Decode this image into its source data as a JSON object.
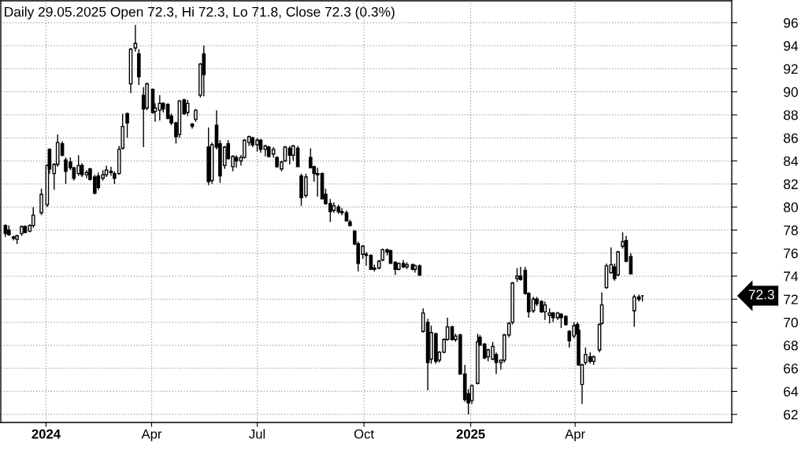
{
  "chart_data": {
    "type": "candlestick",
    "title": "Daily 29.05.2025 Open 72.3, Hi 72.3, Lo 71.8, Close 72.3 (0.3%)",
    "color": "#000000",
    "x": [
      "2023-11-27",
      "2023-11-30",
      "2023-12-04",
      "2023-12-07",
      "2023-12-11",
      "2023-12-14",
      "2023-12-18",
      "2023-12-21",
      "2023-12-28",
      "2024-01-02",
      "2024-01-04",
      "2024-01-08",
      "2024-01-11",
      "2024-01-15",
      "2024-01-18",
      "2024-01-22",
      "2024-01-25",
      "2024-01-29",
      "2024-02-01",
      "2024-02-05",
      "2024-02-08",
      "2024-02-12",
      "2024-02-15",
      "2024-02-19",
      "2024-02-22",
      "2024-02-26",
      "2024-02-29",
      "2024-03-04",
      "2024-03-07",
      "2024-03-11",
      "2024-03-14",
      "2024-03-18",
      "2024-03-21",
      "2024-03-25",
      "2024-03-28",
      "2024-04-02",
      "2024-04-04",
      "2024-04-08",
      "2024-04-11",
      "2024-04-15",
      "2024-04-18",
      "2024-04-22",
      "2024-04-25",
      "2024-04-29",
      "2024-05-02",
      "2024-05-06",
      "2024-05-09",
      "2024-05-13",
      "2024-05-16",
      "2024-05-20",
      "2024-05-23",
      "2024-05-27",
      "2024-05-30",
      "2024-06-03",
      "2024-06-06",
      "2024-06-10",
      "2024-06-13",
      "2024-06-17",
      "2024-06-20",
      "2024-06-24",
      "2024-06-27",
      "2024-07-01",
      "2024-07-04",
      "2024-07-08",
      "2024-07-11",
      "2024-07-15",
      "2024-07-18",
      "2024-07-22",
      "2024-07-25",
      "2024-07-29",
      "2024-08-01",
      "2024-08-05",
      "2024-08-08",
      "2024-08-12",
      "2024-08-16",
      "2024-08-19",
      "2024-08-22",
      "2024-08-26",
      "2024-08-29",
      "2024-09-02",
      "2024-09-05",
      "2024-09-09",
      "2024-09-12",
      "2024-09-16",
      "2024-09-19",
      "2024-09-23",
      "2024-09-26",
      "2024-09-30",
      "2024-10-03",
      "2024-10-07",
      "2024-10-10",
      "2024-10-14",
      "2024-10-17",
      "2024-10-21",
      "2024-10-24",
      "2024-10-28",
      "2024-10-31",
      "2024-11-04",
      "2024-11-07",
      "2024-11-12",
      "2024-11-14",
      "2024-11-18",
      "2024-11-21",
      "2024-11-25",
      "2024-11-28",
      "2024-12-02",
      "2024-12-05",
      "2024-12-09",
      "2024-12-12",
      "2024-12-16",
      "2024-12-19",
      "2024-12-23",
      "2024-12-27",
      "2024-12-30",
      "2025-01-02",
      "2025-01-07",
      "2025-01-09",
      "2025-01-13",
      "2025-01-16",
      "2025-01-20",
      "2025-01-23",
      "2025-01-27",
      "2025-01-30",
      "2025-02-03",
      "2025-02-06",
      "2025-02-10",
      "2025-02-13",
      "2025-02-17",
      "2025-02-20",
      "2025-02-24",
      "2025-02-27",
      "2025-03-03",
      "2025-03-06",
      "2025-03-10",
      "2025-03-13",
      "2025-03-17",
      "2025-03-20",
      "2025-03-24",
      "2025-03-27",
      "2025-03-31",
      "2025-04-03",
      "2025-04-04",
      "2025-04-07",
      "2025-04-10",
      "2025-04-14",
      "2025-04-17",
      "2025-04-22",
      "2025-04-24",
      "2025-04-28",
      "2025-05-02",
      "2025-05-05",
      "2025-05-08",
      "2025-05-12",
      "2025-05-15",
      "2025-05-19",
      "2025-05-22",
      "2025-05-26",
      "2025-05-29"
    ],
    "ohlc": [
      [
        78.4,
        78.5,
        77.4,
        77.7
      ],
      [
        78.0,
        78.4,
        77.5,
        77.6
      ],
      [
        77.3,
        77.5,
        77.1,
        77.4
      ],
      [
        77.2,
        77.6,
        76.8,
        77.5
      ],
      [
        77.7,
        78.4,
        77.5,
        78.3
      ],
      [
        78.3,
        78.4,
        77.7,
        77.8
      ],
      [
        77.9,
        78.5,
        77.8,
        78.4
      ],
      [
        78.4,
        80.0,
        78.2,
        79.3
      ],
      [
        79.5,
        81.6,
        79.3,
        81.1
      ],
      [
        80.2,
        83.7,
        80.0,
        83.6
      ],
      [
        85.0,
        85.1,
        82.9,
        83.3
      ],
      [
        82.9,
        83.8,
        81.5,
        83.7
      ],
      [
        83.7,
        86.3,
        83.5,
        85.6
      ],
      [
        85.5,
        85.7,
        84.4,
        84.5
      ],
      [
        84.1,
        84.3,
        82.0,
        83.1
      ],
      [
        83.9,
        84.3,
        83.2,
        83.4
      ],
      [
        83.4,
        83.5,
        82.3,
        82.5
      ],
      [
        82.9,
        84.5,
        82.7,
        83.6
      ],
      [
        83.6,
        83.8,
        82.6,
        82.8
      ],
      [
        82.8,
        83.2,
        82.5,
        83.0
      ],
      [
        83.3,
        83.4,
        82.3,
        82.4
      ],
      [
        82.6,
        82.8,
        81.1,
        81.2
      ],
      [
        82.7,
        83.0,
        81.5,
        81.7
      ],
      [
        82.5,
        83.2,
        82.3,
        82.8
      ],
      [
        82.8,
        83.6,
        82.6,
        83.2
      ],
      [
        83.0,
        83.5,
        82.7,
        83.1
      ],
      [
        82.9,
        83.1,
        82.0,
        82.5
      ],
      [
        82.9,
        85.3,
        82.8,
        85.0
      ],
      [
        85.1,
        88.1,
        85.0,
        87.0
      ],
      [
        88.1,
        88.2,
        86.0,
        87.3
      ],
      [
        90.7,
        93.8,
        89.9,
        93.7
      ],
      [
        93.8,
        95.8,
        93.5,
        94.2
      ],
      [
        93.3,
        93.7,
        90.6,
        91.3
      ],
      [
        89.7,
        90.4,
        85.2,
        88.5
      ],
      [
        88.6,
        90.8,
        88.4,
        90.7
      ],
      [
        90.2,
        90.3,
        88.1,
        88.2
      ],
      [
        88.3,
        89.0,
        87.4,
        88.6
      ],
      [
        88.4,
        89.7,
        87.5,
        89.0
      ],
      [
        89.0,
        89.1,
        88.2,
        88.5
      ],
      [
        88.9,
        89.0,
        87.6,
        87.7
      ],
      [
        87.9,
        88.1,
        87.1,
        87.3
      ],
      [
        87.3,
        87.4,
        85.5,
        86.1
      ],
      [
        86.3,
        89.3,
        86.0,
        89.2
      ],
      [
        89.3,
        89.4,
        88.0,
        88.1
      ],
      [
        88.2,
        89.3,
        87.9,
        89.0
      ],
      [
        87.2,
        87.3,
        86.8,
        87.0
      ],
      [
        87.6,
        88.5,
        87.4,
        88.4
      ],
      [
        89.7,
        92.5,
        89.5,
        92.4
      ],
      [
        93.3,
        94.0,
        89.6,
        91.5
      ],
      [
        85.2,
        86.9,
        81.9,
        82.2
      ],
      [
        82.3,
        85.6,
        82.0,
        85.4
      ],
      [
        87.1,
        88.4,
        85.0,
        85.2
      ],
      [
        85.5,
        85.8,
        82.1,
        82.7
      ],
      [
        83.6,
        85.3,
        83.3,
        85.2
      ],
      [
        85.5,
        85.8,
        84.1,
        84.2
      ],
      [
        83.5,
        84.5,
        83.1,
        84.4
      ],
      [
        84.3,
        84.5,
        83.4,
        84.0
      ],
      [
        84.0,
        84.5,
        83.6,
        84.3
      ],
      [
        84.3,
        85.9,
        84.2,
        85.8
      ],
      [
        85.6,
        86.2,
        85.3,
        86.1
      ],
      [
        86.0,
        86.1,
        85.2,
        85.4
      ],
      [
        85.4,
        86.0,
        84.8,
        85.8
      ],
      [
        85.8,
        85.9,
        84.7,
        85.0
      ],
      [
        85.0,
        85.4,
        84.4,
        85.3
      ],
      [
        85.2,
        85.3,
        84.3,
        84.4
      ],
      [
        84.6,
        85.2,
        84.3,
        85.0
      ],
      [
        84.3,
        84.4,
        83.4,
        83.5
      ],
      [
        83.3,
        84.0,
        83.1,
        83.9
      ],
      [
        84.0,
        85.3,
        83.9,
        85.2
      ],
      [
        85.1,
        85.3,
        83.7,
        84.5
      ],
      [
        84.5,
        85.4,
        84.0,
        85.3
      ],
      [
        85.1,
        85.3,
        83.5,
        83.5
      ],
      [
        82.7,
        82.9,
        80.1,
        80.8
      ],
      [
        81.0,
        82.9,
        80.8,
        82.6
      ],
      [
        84.3,
        85.1,
        83.4,
        83.4
      ],
      [
        83.5,
        83.6,
        82.2,
        82.9
      ],
      [
        82.9,
        83.4,
        80.9,
        82.8
      ],
      [
        82.9,
        83.0,
        80.7,
        80.7
      ],
      [
        81.1,
        81.6,
        80.2,
        80.3
      ],
      [
        80.3,
        80.7,
        78.7,
        79.6
      ],
      [
        79.7,
        80.4,
        79.5,
        80.1
      ],
      [
        80.0,
        80.2,
        79.4,
        79.6
      ],
      [
        79.6,
        79.9,
        79.3,
        79.5
      ],
      [
        79.5,
        79.7,
        78.8,
        78.8
      ],
      [
        78.7,
        78.9,
        78.3,
        78.4
      ],
      [
        77.9,
        78.0,
        76.7,
        76.8
      ],
      [
        76.8,
        77.0,
        74.4,
        75.1
      ],
      [
        75.9,
        76.7,
        75.5,
        76.6
      ],
      [
        75.9,
        76.1,
        74.9,
        75.8
      ],
      [
        75.8,
        75.9,
        74.6,
        74.6
      ],
      [
        74.7,
        75.0,
        74.4,
        74.6
      ],
      [
        74.7,
        75.4,
        74.6,
        75.3
      ],
      [
        75.4,
        76.4,
        75.3,
        76.3
      ],
      [
        76.3,
        76.4,
        75.8,
        76.1
      ],
      [
        76.2,
        76.3,
        75.1,
        75.1
      ],
      [
        75.2,
        75.3,
        74.1,
        74.6
      ],
      [
        74.6,
        75.2,
        74.5,
        75.1
      ],
      [
        75.1,
        75.4,
        74.7,
        74.8
      ],
      [
        74.8,
        75.2,
        74.6,
        75.0
      ],
      [
        75.0,
        75.1,
        74.5,
        74.6
      ],
      [
        74.6,
        75.0,
        74.3,
        74.9
      ],
      [
        74.9,
        75.0,
        74.0,
        74.1
      ],
      [
        69.2,
        71.2,
        69.1,
        70.8
      ],
      [
        70.0,
        70.3,
        64.1,
        66.5
      ],
      [
        66.8,
        69.7,
        66.4,
        69.1
      ],
      [
        69.0,
        69.1,
        66.4,
        66.6
      ],
      [
        66.7,
        67.5,
        66.5,
        67.4
      ],
      [
        67.4,
        68.6,
        67.3,
        68.5
      ],
      [
        68.5,
        70.4,
        68.4,
        69.6
      ],
      [
        69.6,
        69.7,
        68.4,
        68.5
      ],
      [
        68.5,
        69.0,
        68.3,
        68.8
      ],
      [
        68.9,
        69.0,
        65.5,
        65.5
      ],
      [
        65.5,
        66.3,
        63.1,
        63.3
      ],
      [
        63.8,
        64.2,
        62.0,
        63.0
      ],
      [
        63.2,
        64.6,
        62.9,
        64.5
      ],
      [
        64.7,
        69.0,
        64.6,
        68.3
      ],
      [
        68.7,
        68.9,
        68.0,
        68.0
      ],
      [
        68.1,
        68.2,
        66.8,
        66.9
      ],
      [
        67.0,
        67.7,
        66.6,
        67.6
      ],
      [
        66.8,
        68.3,
        66.7,
        67.9
      ],
      [
        67.2,
        67.4,
        65.5,
        66.5
      ],
      [
        66.5,
        66.8,
        65.9,
        66.7
      ],
      [
        66.7,
        69.0,
        66.5,
        68.9
      ],
      [
        68.9,
        70.0,
        68.7,
        69.9
      ],
      [
        70.0,
        73.5,
        69.8,
        73.4
      ],
      [
        73.8,
        74.7,
        73.5,
        74.0
      ],
      [
        74.0,
        74.8,
        73.6,
        73.7
      ],
      [
        74.5,
        74.8,
        72.4,
        72.5
      ],
      [
        72.5,
        72.6,
        70.4,
        70.9
      ],
      [
        71.0,
        72.2,
        70.8,
        72.0
      ],
      [
        72.0,
        72.2,
        71.4,
        71.6
      ],
      [
        71.8,
        71.9,
        70.8,
        70.9
      ],
      [
        70.9,
        71.8,
        70.2,
        71.5
      ],
      [
        70.6,
        71.2,
        69.9,
        70.8
      ],
      [
        70.8,
        70.9,
        70.0,
        70.4
      ],
      [
        70.4,
        70.9,
        70.2,
        70.8
      ],
      [
        70.7,
        70.8,
        69.5,
        70.4
      ],
      [
        70.5,
        70.6,
        69.7,
        69.8
      ],
      [
        69.2,
        69.3,
        67.8,
        68.4
      ],
      [
        68.8,
        70.0,
        68.6,
        69.7
      ],
      [
        69.8,
        70.0,
        69.0,
        69.0
      ],
      [
        69.3,
        69.4,
        66.2,
        66.3
      ],
      [
        64.6,
        66.4,
        62.9,
        66.3
      ],
      [
        66.5,
        67.8,
        66.3,
        67.2
      ],
      [
        67.0,
        67.4,
        66.4,
        66.6
      ],
      [
        66.6,
        67.1,
        66.3,
        67.0
      ],
      [
        67.6,
        69.9,
        67.4,
        69.8
      ],
      [
        69.9,
        72.6,
        69.8,
        71.5
      ],
      [
        73.0,
        75.1,
        72.9,
        74.9
      ],
      [
        74.3,
        76.5,
        74.2,
        75.0
      ],
      [
        74.8,
        75.1,
        73.6,
        73.8
      ],
      [
        74.1,
        76.2,
        74.0,
        76.1
      ],
      [
        76.6,
        77.8,
        76.4,
        77.0
      ],
      [
        77.1,
        77.5,
        75.2,
        75.3
      ],
      [
        75.7,
        76.0,
        74.2,
        74.2
      ],
      [
        71.0,
        72.4,
        69.6,
        72.2
      ],
      [
        72.2,
        72.4,
        71.8,
        72.0
      ],
      [
        72.3,
        72.3,
        71.8,
        72.3
      ]
    ],
    "xlim": [
      "2023-11-23",
      "2025-08-14"
    ],
    "ylim": [
      61.3,
      97.9
    ],
    "xticks": [
      {
        "value": "2024-01-01",
        "label": "2024"
      },
      {
        "value": "2024-04-01",
        "label": "Apr"
      },
      {
        "value": "2024-07-01",
        "label": "Jul"
      },
      {
        "value": "2024-10-01",
        "label": "Oct"
      },
      {
        "value": "2025-01-01",
        "label": "2025"
      },
      {
        "value": "2025-04-01",
        "label": "Apr"
      }
    ],
    "yticks": [
      62,
      64,
      66,
      68,
      70,
      72,
      74,
      76,
      78,
      80,
      82,
      84,
      86,
      88,
      90,
      92,
      94,
      96
    ],
    "grid": true,
    "annotations": [
      "72.3"
    ]
  }
}
